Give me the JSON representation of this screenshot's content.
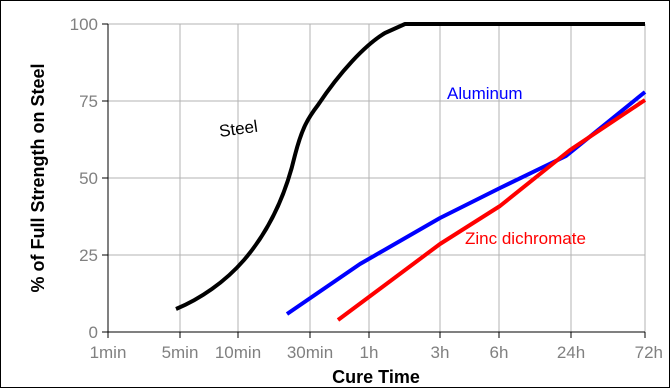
{
  "chart_data": {
    "type": "line",
    "title": "",
    "xlabel": "Cure Time",
    "ylabel": "% of Full Strength on Steel",
    "ylim": [
      0,
      100
    ],
    "y_ticks": [
      0,
      25,
      50,
      75,
      100
    ],
    "x_categories": [
      "1min",
      "5min",
      "10min",
      "30min",
      "1h",
      "3h",
      "6h",
      "24h",
      "72h"
    ],
    "grid": true,
    "series": [
      {
        "name": "Steel",
        "color": "#000000",
        "points": [
          {
            "x": "5min",
            "y": 7
          },
          {
            "x": "10min",
            "y": 21
          },
          {
            "x": "30min",
            "y": 55
          },
          {
            "x": "30min",
            "y": 68
          },
          {
            "x": "1h",
            "y": 90
          },
          {
            "x": "1h",
            "y": 96
          },
          {
            "x": "3h",
            "y": 100
          },
          {
            "x": "6h",
            "y": 100
          },
          {
            "x": "24h",
            "y": 100
          },
          {
            "x": "72h",
            "y": 100
          }
        ]
      },
      {
        "name": "Aluminum",
        "color": "#0000ff",
        "points": [
          {
            "x": "30min",
            "y": 5
          },
          {
            "x": "1h",
            "y": 21
          },
          {
            "x": "3h",
            "y": 36
          },
          {
            "x": "6h",
            "y": 46
          },
          {
            "x": "24h",
            "y": 62
          },
          {
            "x": "72h",
            "y": 78
          }
        ]
      },
      {
        "name": "Zinc dichromate",
        "color": "#ff0000",
        "points": [
          {
            "x": "1h",
            "y": 4
          },
          {
            "x": "3h",
            "y": 28
          },
          {
            "x": "6h",
            "y": 40
          },
          {
            "x": "24h",
            "y": 59
          },
          {
            "x": "72h",
            "y": 75
          }
        ]
      }
    ]
  }
}
